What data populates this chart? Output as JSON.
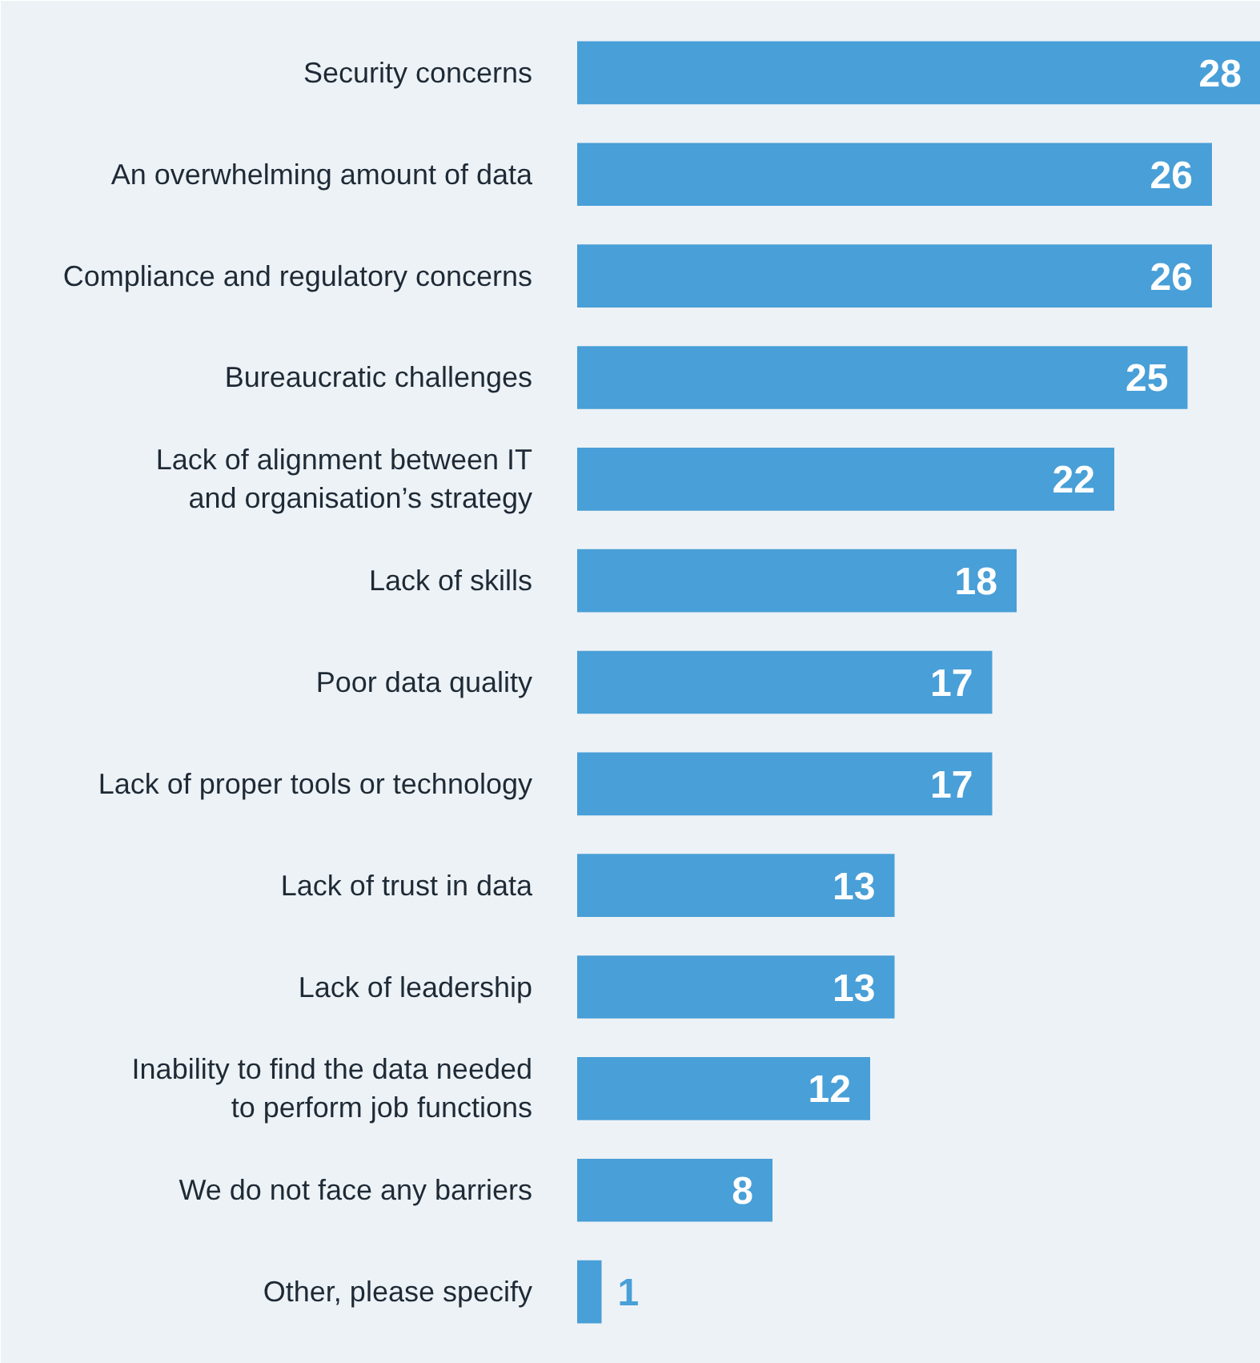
{
  "chart_data": {
    "type": "bar",
    "orientation": "horizontal",
    "categories": [
      "Security concerns",
      "An overwhelming amount of data",
      "Compliance and regulatory concerns",
      "Bureaucratic challenges",
      "Lack of alignment between IT\nand organisation’s strategy",
      "Lack of skills",
      "Poor data quality",
      "Lack of proper tools or technology",
      "Lack of trust in data",
      "Lack of leadership",
      "Inability to find the data needed\nto perform job functions",
      "We do not face any barriers",
      "Other, please specify"
    ],
    "values": [
      28,
      26,
      26,
      25,
      22,
      18,
      17,
      17,
      13,
      13,
      12,
      8,
      1
    ],
    "color": "#499fd7",
    "data_labels": true,
    "grid": false,
    "tick_labels": "y"
  }
}
